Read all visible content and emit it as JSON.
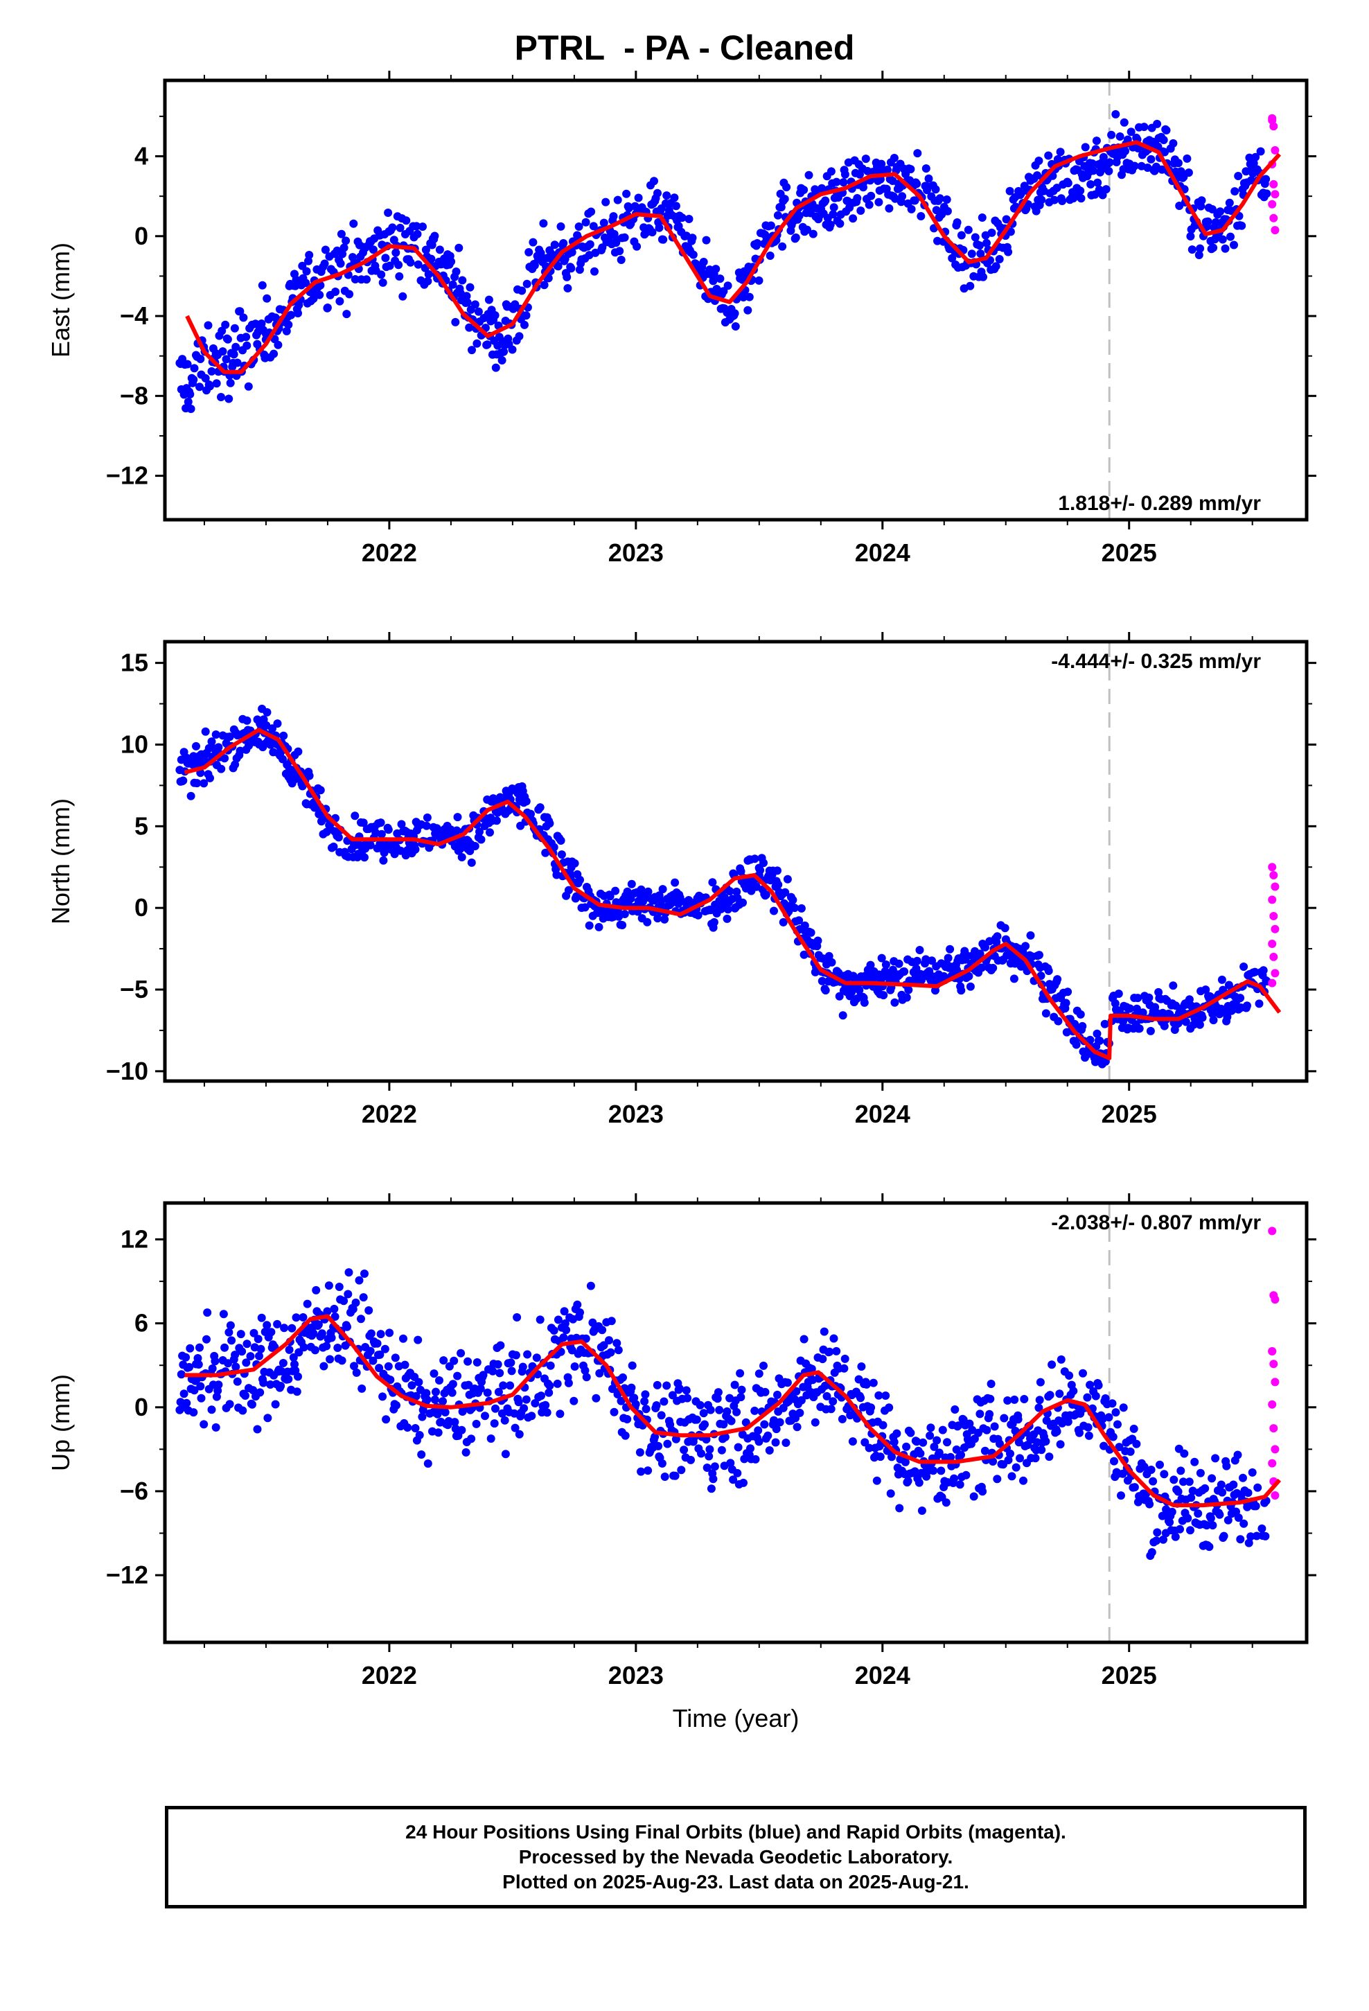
{
  "title": "PTRL  - PA - Cleaned",
  "xlabel": "Time (year)",
  "caption": {
    "line1": "24 Hour Positions Using Final Orbits (blue) and Rapid Orbits (magenta).",
    "line2": "Processed by the Nevada Geodetic Laboratory.",
    "line3": "Plotted on 2025-Aug-23. Last data on 2025-Aug-21."
  },
  "colors": {
    "final": "#0000ff",
    "rapid": "#ff00ff",
    "model": "#ff0000",
    "equipment_change": "#c0c0c0"
  },
  "chart_data": [
    {
      "type": "scatter",
      "component": "East",
      "ylabel": "East (mm)",
      "xlim": [
        2021.09,
        2025.72
      ],
      "ylim": [
        -14.2,
        7.8
      ],
      "yticks": [
        -12,
        -8,
        -4,
        0,
        4
      ],
      "xticks": [
        2022,
        2023,
        2024,
        2025
      ],
      "rate_label": "1.818+/- 0.289 mm/yr",
      "rate_position": "bottom-right",
      "break_epoch": 2024.92,
      "grid": false,
      "fit": [
        [
          2021.18,
          -4.0
        ],
        [
          2021.25,
          -5.8
        ],
        [
          2021.33,
          -6.8
        ],
        [
          2021.4,
          -6.8
        ],
        [
          2021.5,
          -5.4
        ],
        [
          2021.6,
          -3.4
        ],
        [
          2021.7,
          -2.3
        ],
        [
          2021.8,
          -1.9
        ],
        [
          2021.9,
          -1.3
        ],
        [
          2022.0,
          -0.5
        ],
        [
          2022.1,
          -0.6
        ],
        [
          2022.2,
          -2.0
        ],
        [
          2022.3,
          -3.9
        ],
        [
          2022.4,
          -5.0
        ],
        [
          2022.5,
          -4.4
        ],
        [
          2022.6,
          -2.4
        ],
        [
          2022.7,
          -0.8
        ],
        [
          2022.8,
          0.0
        ],
        [
          2022.9,
          0.5
        ],
        [
          2023.0,
          1.1
        ],
        [
          2023.1,
          1.0
        ],
        [
          2023.2,
          -1.0
        ],
        [
          2023.3,
          -3.0
        ],
        [
          2023.38,
          -3.3
        ],
        [
          2023.45,
          -2.3
        ],
        [
          2023.55,
          -0.2
        ],
        [
          2023.65,
          1.4
        ],
        [
          2023.75,
          2.1
        ],
        [
          2023.85,
          2.4
        ],
        [
          2023.95,
          3.0
        ],
        [
          2024.05,
          3.1
        ],
        [
          2024.15,
          2.0
        ],
        [
          2024.25,
          0.0
        ],
        [
          2024.35,
          -1.3
        ],
        [
          2024.42,
          -1.1
        ],
        [
          2024.5,
          0.3
        ],
        [
          2024.6,
          2.2
        ],
        [
          2024.7,
          3.5
        ],
        [
          2024.8,
          4.0
        ],
        [
          2024.92,
          4.4
        ],
        [
          2025.03,
          4.7
        ],
        [
          2025.12,
          4.2
        ],
        [
          2025.22,
          2.0
        ],
        [
          2025.31,
          0.1
        ],
        [
          2025.38,
          0.3
        ],
        [
          2025.46,
          1.6
        ],
        [
          2025.53,
          3.0
        ],
        [
          2025.61,
          4.1
        ]
      ],
      "final_segments": [
        [
          2021.15,
          2021.3,
          -7.5,
          -6.2,
          2.0
        ],
        [
          2021.3,
          2021.5,
          -6.4,
          -4.8,
          1.8
        ],
        [
          2021.5,
          2021.75,
          -4.6,
          -1.8,
          1.5
        ],
        [
          2021.75,
          2022.1,
          -1.8,
          -0.4,
          1.6
        ],
        [
          2022.1,
          2022.45,
          -0.5,
          -5.0,
          1.6
        ],
        [
          2022.45,
          2022.65,
          -5.0,
          -1.2,
          1.6
        ],
        [
          2022.65,
          2023.1,
          -1.0,
          1.0,
          1.4
        ],
        [
          2023.1,
          2023.38,
          1.0,
          -3.3,
          1.5
        ],
        [
          2023.38,
          2023.6,
          -3.3,
          1.0,
          1.5
        ],
        [
          2023.6,
          2024.1,
          1.2,
          3.0,
          1.4
        ],
        [
          2024.1,
          2024.38,
          3.0,
          -1.3,
          1.5
        ],
        [
          2024.38,
          2024.62,
          -1.3,
          2.5,
          1.5
        ],
        [
          2024.62,
          2025.13,
          2.6,
          4.6,
          1.5
        ],
        [
          2025.13,
          2025.32,
          4.3,
          0.2,
          1.4
        ],
        [
          2025.32,
          2025.56,
          0.2,
          3.4,
          1.5
        ]
      ],
      "rapid_values": [
        5.8,
        5.5,
        4.3,
        3.6,
        2.6,
        2.1,
        1.6,
        0.9,
        0.3,
        5.9
      ]
    },
    {
      "type": "scatter",
      "component": "North",
      "ylabel": "North (mm)",
      "xlim": [
        2021.09,
        2025.72
      ],
      "ylim": [
        -10.6,
        16.3
      ],
      "yticks": [
        -10,
        -5,
        0,
        5,
        10,
        15
      ],
      "xticks": [
        2022,
        2023,
        2024,
        2025
      ],
      "rate_label": "-4.444+/- 0.325 mm/yr",
      "rate_position": "top-right",
      "break_epoch": 2024.92,
      "grid": false,
      "fit": [
        [
          2021.17,
          8.3
        ],
        [
          2021.25,
          8.6
        ],
        [
          2021.35,
          9.8
        ],
        [
          2021.47,
          10.9
        ],
        [
          2021.55,
          10.3
        ],
        [
          2021.65,
          8.0
        ],
        [
          2021.75,
          5.6
        ],
        [
          2021.85,
          4.2
        ],
        [
          2021.95,
          4.2
        ],
        [
          2022.1,
          4.2
        ],
        [
          2022.2,
          3.9
        ],
        [
          2022.3,
          4.5
        ],
        [
          2022.4,
          6.0
        ],
        [
          2022.48,
          6.5
        ],
        [
          2022.55,
          5.6
        ],
        [
          2022.65,
          3.6
        ],
        [
          2022.75,
          1.2
        ],
        [
          2022.85,
          0.2
        ],
        [
          2022.95,
          0.0
        ],
        [
          2023.05,
          0.0
        ],
        [
          2023.18,
          -0.4
        ],
        [
          2023.3,
          0.5
        ],
        [
          2023.4,
          1.8
        ],
        [
          2023.48,
          2.0
        ],
        [
          2023.55,
          1.0
        ],
        [
          2023.65,
          -1.5
        ],
        [
          2023.75,
          -3.8
        ],
        [
          2023.85,
          -4.6
        ],
        [
          2023.95,
          -4.6
        ],
        [
          2024.1,
          -4.7
        ],
        [
          2024.22,
          -4.8
        ],
        [
          2024.35,
          -3.8
        ],
        [
          2024.45,
          -2.6
        ],
        [
          2024.5,
          -2.2
        ],
        [
          2024.58,
          -3.2
        ],
        [
          2024.68,
          -5.6
        ],
        [
          2024.78,
          -7.6
        ],
        [
          2024.86,
          -8.8
        ],
        [
          2024.92,
          -9.2
        ],
        [
          2024.925,
          -6.6
        ],
        [
          2025.0,
          -6.6
        ],
        [
          2025.1,
          -6.8
        ],
        [
          2025.2,
          -6.8
        ],
        [
          2025.3,
          -6.1
        ],
        [
          2025.4,
          -5.2
        ],
        [
          2025.48,
          -4.5
        ],
        [
          2025.53,
          -4.8
        ],
        [
          2025.57,
          -5.6
        ],
        [
          2025.61,
          -6.4
        ]
      ],
      "final_segments": [
        [
          2021.15,
          2021.48,
          8.3,
          10.9,
          1.2
        ],
        [
          2021.48,
          2021.85,
          10.6,
          4.2,
          1.3
        ],
        [
          2021.85,
          2022.32,
          4.2,
          4.4,
          1.1
        ],
        [
          2022.32,
          2022.5,
          4.4,
          6.5,
          1.3
        ],
        [
          2022.5,
          2022.85,
          6.3,
          0.2,
          1.5
        ],
        [
          2022.85,
          2023.3,
          0.1,
          0.3,
          1.1
        ],
        [
          2023.3,
          2023.5,
          0.3,
          2.0,
          1.3
        ],
        [
          2023.5,
          2023.85,
          1.8,
          -4.6,
          1.4
        ],
        [
          2023.85,
          2024.35,
          -4.6,
          -3.8,
          1.2
        ],
        [
          2024.35,
          2024.52,
          -3.6,
          -2.2,
          1.2
        ],
        [
          2024.52,
          2024.92,
          -2.6,
          -9.0,
          1.4
        ],
        [
          2024.93,
          2025.3,
          -6.3,
          -6.4,
          1.2
        ],
        [
          2025.3,
          2025.56,
          -6.0,
          -4.6,
          1.2
        ]
      ],
      "rapid_values": [
        2.5,
        2.0,
        1.3,
        0.5,
        -0.5,
        -1.3,
        -2.2,
        -3.0,
        -4.0,
        -4.6
      ]
    },
    {
      "type": "scatter",
      "component": "Up",
      "ylabel": "Up (mm)",
      "xlim": [
        2021.09,
        2025.72
      ],
      "ylim": [
        -16.8,
        14.6
      ],
      "yticks": [
        -12,
        -6,
        0,
        6,
        12
      ],
      "xticks": [
        2022,
        2023,
        2024,
        2025
      ],
      "rate_label": "-2.038+/- 0.807 mm/yr",
      "rate_position": "top-right",
      "break_epoch": 2024.92,
      "grid": false,
      "fit": [
        [
          2021.17,
          2.3
        ],
        [
          2021.3,
          2.3
        ],
        [
          2021.45,
          2.7
        ],
        [
          2021.58,
          4.5
        ],
        [
          2021.68,
          6.3
        ],
        [
          2021.75,
          6.5
        ],
        [
          2021.85,
          4.5
        ],
        [
          2021.95,
          2.2
        ],
        [
          2022.05,
          0.8
        ],
        [
          2022.15,
          0.1
        ],
        [
          2022.25,
          0.0
        ],
        [
          2022.4,
          0.3
        ],
        [
          2022.5,
          0.9
        ],
        [
          2022.6,
          2.8
        ],
        [
          2022.7,
          4.5
        ],
        [
          2022.78,
          4.7
        ],
        [
          2022.88,
          3.0
        ],
        [
          2022.98,
          0.0
        ],
        [
          2023.08,
          -1.8
        ],
        [
          2023.18,
          -2.0
        ],
        [
          2023.3,
          -2.0
        ],
        [
          2023.45,
          -1.5
        ],
        [
          2023.58,
          0.3
        ],
        [
          2023.68,
          2.3
        ],
        [
          2023.74,
          2.5
        ],
        [
          2023.85,
          0.8
        ],
        [
          2023.95,
          -1.5
        ],
        [
          2024.05,
          -3.2
        ],
        [
          2024.15,
          -3.9
        ],
        [
          2024.3,
          -3.9
        ],
        [
          2024.45,
          -3.5
        ],
        [
          2024.55,
          -2.0
        ],
        [
          2024.65,
          -0.3
        ],
        [
          2024.75,
          0.5
        ],
        [
          2024.82,
          0.2
        ],
        [
          2024.9,
          -2.0
        ],
        [
          2025.0,
          -4.5
        ],
        [
          2025.1,
          -6.3
        ],
        [
          2025.18,
          -7.0
        ],
        [
          2025.3,
          -7.0
        ],
        [
          2025.45,
          -6.8
        ],
        [
          2025.55,
          -6.4
        ],
        [
          2025.61,
          -5.2
        ]
      ],
      "final_segments": [
        [
          2021.15,
          2021.5,
          2.3,
          2.8,
          3.4
        ],
        [
          2021.5,
          2021.78,
          2.8,
          6.5,
          3.2
        ],
        [
          2021.78,
          2022.15,
          6.2,
          0.1,
          3.2
        ],
        [
          2022.15,
          2022.5,
          0.0,
          0.9,
          3.4
        ],
        [
          2022.5,
          2022.8,
          0.9,
          4.8,
          3.4
        ],
        [
          2022.8,
          2023.1,
          4.6,
          -1.8,
          3.4
        ],
        [
          2023.1,
          2023.5,
          -1.9,
          -1.2,
          3.6
        ],
        [
          2023.5,
          2023.75,
          -1.0,
          2.5,
          3.2
        ],
        [
          2023.75,
          2024.15,
          2.2,
          -3.9,
          3.2
        ],
        [
          2024.15,
          2024.55,
          -3.9,
          -2.0,
          3.2
        ],
        [
          2024.55,
          2024.82,
          -1.8,
          0.4,
          3.2
        ],
        [
          2024.82,
          2025.15,
          0.0,
          -6.8,
          3.2
        ],
        [
          2025.15,
          2025.56,
          -6.9,
          -6.5,
          3.2
        ]
      ],
      "rapid_values": [
        12.6,
        8.0,
        7.7,
        4.0,
        3.1,
        1.8,
        0.2,
        -1.5,
        -3.0,
        -4.0,
        -5.3,
        -6.3,
        4.0
      ]
    }
  ]
}
